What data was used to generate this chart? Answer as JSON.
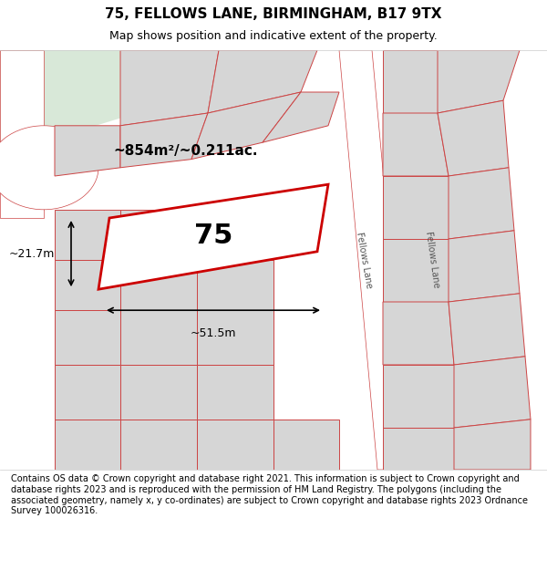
{
  "title": "75, FELLOWS LANE, BIRMINGHAM, B17 9TX",
  "subtitle": "Map shows position and indicative extent of the property.",
  "footer": "Contains OS data © Crown copyright and database right 2021. This information is subject to Crown copyright and database rights 2023 and is reproduced with the permission of HM Land Registry. The polygons (including the associated geometry, namely x, y co-ordinates) are subject to Crown copyright and database rights 2023 Ordnance Survey 100026316.",
  "map_bg": "#f2f4f0",
  "street_bg": "#ffffff",
  "plot_color": "#cc0000",
  "plot_fill": "#ffffff",
  "neighbor_fill": "#d6d6d6",
  "neighbor_stroke": "#cc4444",
  "road_color": "#cc4444",
  "label_75": "75",
  "area_label": "~854m²/~0.211ac.",
  "dim_width": "~51.5m",
  "dim_height": "~21.7m",
  "fellows_lane_label": "Fellows Lane",
  "title_fontsize": 11,
  "subtitle_fontsize": 9,
  "footer_fontsize": 7
}
